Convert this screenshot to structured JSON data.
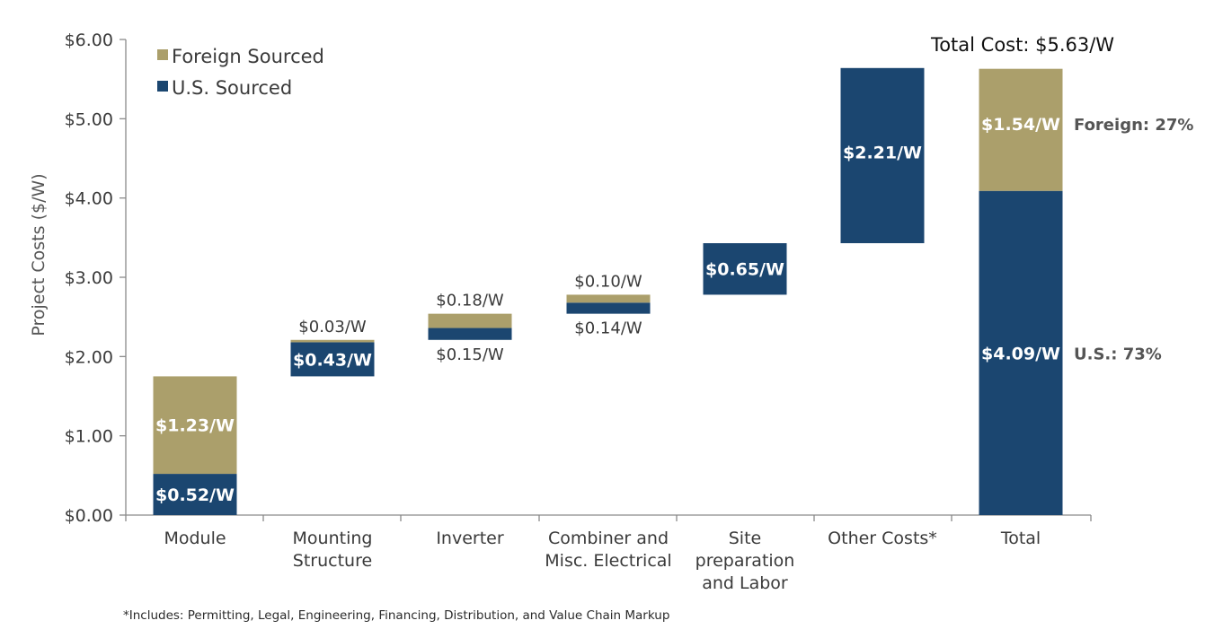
{
  "chart_data": {
    "type": "bar",
    "subtype": "stacked-waterfall",
    "ylabel": "Project Costs ($/W)",
    "ylim": [
      0,
      6
    ],
    "yticks": [
      "$0.00",
      "$1.00",
      "$2.00",
      "$3.00",
      "$4.00",
      "$5.00",
      "$6.00"
    ],
    "ytick_values": [
      0,
      1,
      2,
      3,
      4,
      5,
      6
    ],
    "grid": false,
    "legend_position": "top-left",
    "categories": [
      "Module",
      "Mounting Structure",
      "Inverter",
      "Combiner and Misc. Electrical",
      "Site preparation and Labor",
      "Other Costs*",
      "Total"
    ],
    "category_lines": [
      [
        "Module"
      ],
      [
        "Mounting",
        "Structure"
      ],
      [
        "Inverter"
      ],
      [
        "Combiner and",
        "Misc. Electrical"
      ],
      [
        "Site",
        "preparation",
        "and Labor"
      ],
      [
        "Other Costs*"
      ],
      [
        "Total"
      ]
    ],
    "series": [
      {
        "name": "U.S. Sourced",
        "color": "#1b4670",
        "values": [
          0.52,
          0.43,
          0.15,
          0.14,
          0.65,
          2.21,
          4.09
        ],
        "labels": [
          "$0.52/W",
          "$0.43/W",
          "$0.15/W",
          "$0.14/W",
          "$0.65/W",
          "$2.21/W",
          "$4.09/W"
        ]
      },
      {
        "name": "Foreign Sourced",
        "color": "#ab9f6b",
        "values": [
          1.23,
          0.03,
          0.18,
          0.1,
          0,
          0,
          1.54
        ],
        "labels": [
          "$1.23/W",
          "$0.03/W",
          "$0.18/W",
          "$0.10/W",
          "",
          "",
          "$1.54/W"
        ]
      }
    ],
    "bases": [
      0,
      1.75,
      2.21,
      2.54,
      2.78,
      3.43,
      0
    ],
    "annotations": {
      "total": "Total Cost: $5.63/W",
      "foreign_share": "Foreign: 27%",
      "us_share": "U.S.: 73%"
    },
    "footnote": "*Includes: Permitting, Legal, Engineering, Financing, Distribution, and Value Chain Markup"
  },
  "colors": {
    "us": "#1b4670",
    "foreign": "#ab9f6b",
    "axis": "#8a8a8a",
    "text": "#3a3a3a"
  }
}
